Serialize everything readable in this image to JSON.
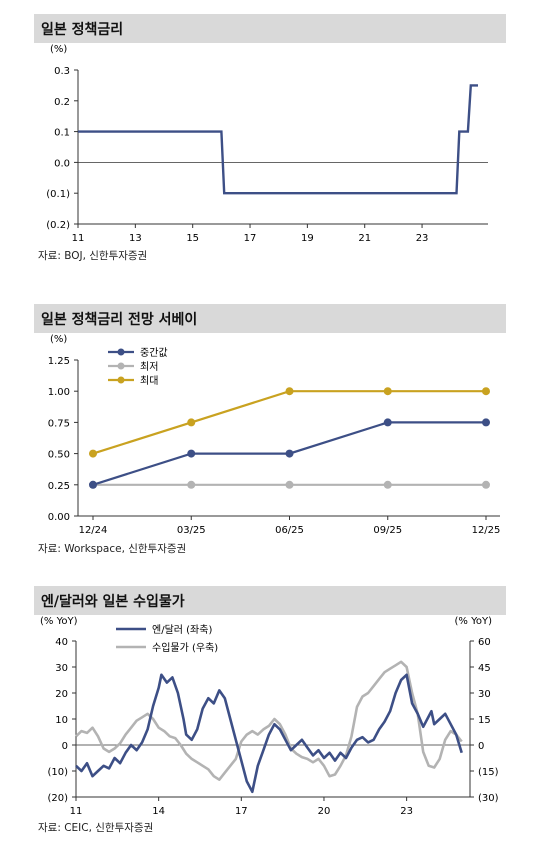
{
  "charts": [
    {
      "title": "일본 정책금리",
      "source": "자료: BOJ, 신한투자증권",
      "chart_data": {
        "type": "line",
        "unit_label": "(%)",
        "ylim": [
          -0.2,
          0.3
        ],
        "yticks": [
          0.3,
          0.2,
          0.1,
          0.0,
          -0.1,
          -0.2
        ],
        "ytick_labels": [
          "0.3",
          "0.2",
          "0.1",
          "0.0",
          "(0.1)",
          "(0.2)"
        ],
        "xlim": [
          2011,
          2025.3
        ],
        "xticks": [
          2011,
          2013,
          2015,
          2017,
          2019,
          2021,
          2023
        ],
        "xtick_labels": [
          "11",
          "13",
          "15",
          "17",
          "19",
          "21",
          "23"
        ],
        "grid": false,
        "series": [
          {
            "color": "#3d4f86",
            "points": [
              [
                2011.0,
                0.1
              ],
              [
                2016.0,
                0.1
              ],
              [
                2016.1,
                -0.1
              ],
              [
                2024.2,
                -0.1
              ],
              [
                2024.3,
                0.1
              ],
              [
                2024.6,
                0.1
              ],
              [
                2024.7,
                0.25
              ],
              [
                2024.95,
                0.25
              ]
            ]
          }
        ]
      }
    },
    {
      "title": "일본 정책금리 전망 서베이",
      "source": "자료: Workspace, 신한투자증권",
      "chart_data": {
        "type": "line",
        "unit_label": "(%)",
        "ylim": [
          0,
          1.25
        ],
        "yticks": [
          1.25,
          1.0,
          0.75,
          0.5,
          0.25,
          0.0
        ],
        "ytick_labels": [
          "1.25",
          "1.00",
          "0.75",
          "0.50",
          "0.25",
          "0.00"
        ],
        "categories": [
          "12/24",
          "03/25",
          "06/25",
          "09/25",
          "12/25"
        ],
        "legend": "top-left",
        "grid": false,
        "series": [
          {
            "name": "중간값",
            "color": "#3d4f86",
            "values": [
              0.25,
              0.5,
              0.5,
              0.75,
              0.75
            ]
          },
          {
            "name": "최저",
            "color": "#b3b3b3",
            "values": [
              0.25,
              0.25,
              0.25,
              0.25,
              0.25
            ]
          },
          {
            "name": "최대",
            "color": "#c9a220",
            "values": [
              0.5,
              0.75,
              1.0,
              1.0,
              1.0
            ]
          }
        ]
      }
    },
    {
      "title": "엔/달러와 일본 수입물가",
      "source": "자료: CEIC, 신한투자증권",
      "chart_data": {
        "type": "line",
        "left_unit_label": "(% YoY)",
        "right_unit_label": "(% YoY)",
        "ylim_left": [
          -20,
          40
        ],
        "ylim_right": [
          -30,
          60
        ],
        "yticks_left": [
          40,
          30,
          20,
          10,
          0,
          -10,
          -20
        ],
        "ytick_labels_left": [
          "40",
          "30",
          "20",
          "10",
          "0",
          "(10)",
          "(20)"
        ],
        "yticks_right": [
          60,
          45,
          30,
          15,
          0,
          -15,
          -30
        ],
        "ytick_labels_right": [
          "60",
          "45",
          "30",
          "15",
          "0",
          "(15)",
          "(30)"
        ],
        "xlim": [
          2011,
          2025.3
        ],
        "xticks": [
          2011,
          2014,
          2017,
          2020,
          2023
        ],
        "xtick_labels": [
          "11",
          "14",
          "17",
          "20",
          "23"
        ],
        "legend": "top-center",
        "grid": false,
        "series": [
          {
            "name": "엔/달러 (좌축)",
            "axis": "left",
            "color": "#3d4f86",
            "points": [
              [
                2011.0,
                -8
              ],
              [
                2011.2,
                -10
              ],
              [
                2011.4,
                -7
              ],
              [
                2011.6,
                -12
              ],
              [
                2011.8,
                -10
              ],
              [
                2012.0,
                -8
              ],
              [
                2012.2,
                -9
              ],
              [
                2012.4,
                -5
              ],
              [
                2012.6,
                -7
              ],
              [
                2012.8,
                -3
              ],
              [
                2013.0,
                0
              ],
              [
                2013.2,
                -2
              ],
              [
                2013.4,
                1
              ],
              [
                2013.6,
                6
              ],
              [
                2013.8,
                15
              ],
              [
                2014.0,
                22
              ],
              [
                2014.1,
                27
              ],
              [
                2014.3,
                24
              ],
              [
                2014.5,
                26
              ],
              [
                2014.7,
                20
              ],
              [
                2014.9,
                10
              ],
              [
                2015.0,
                4
              ],
              [
                2015.2,
                2
              ],
              [
                2015.4,
                6
              ],
              [
                2015.6,
                14
              ],
              [
                2015.8,
                18
              ],
              [
                2016.0,
                16
              ],
              [
                2016.2,
                21
              ],
              [
                2016.4,
                18
              ],
              [
                2016.6,
                10
              ],
              [
                2016.8,
                2
              ],
              [
                2017.0,
                -6
              ],
              [
                2017.2,
                -14
              ],
              [
                2017.4,
                -18
              ],
              [
                2017.6,
                -8
              ],
              [
                2017.8,
                -2
              ],
              [
                2018.0,
                4
              ],
              [
                2018.2,
                8
              ],
              [
                2018.4,
                6
              ],
              [
                2018.6,
                2
              ],
              [
                2018.8,
                -2
              ],
              [
                2019.0,
                0
              ],
              [
                2019.2,
                2
              ],
              [
                2019.4,
                -1
              ],
              [
                2019.6,
                -4
              ],
              [
                2019.8,
                -2
              ],
              [
                2020.0,
                -5
              ],
              [
                2020.2,
                -3
              ],
              [
                2020.4,
                -6
              ],
              [
                2020.6,
                -3
              ],
              [
                2020.8,
                -5
              ],
              [
                2021.0,
                -1
              ],
              [
                2021.2,
                2
              ],
              [
                2021.4,
                3
              ],
              [
                2021.6,
                1
              ],
              [
                2021.8,
                2
              ],
              [
                2022.0,
                6
              ],
              [
                2022.2,
                9
              ],
              [
                2022.4,
                13
              ],
              [
                2022.6,
                20
              ],
              [
                2022.8,
                25
              ],
              [
                2023.0,
                27
              ],
              [
                2023.2,
                16
              ],
              [
                2023.4,
                12
              ],
              [
                2023.6,
                7
              ],
              [
                2023.8,
                11
              ],
              [
                2023.9,
                13
              ],
              [
                2024.0,
                8
              ],
              [
                2024.2,
                10
              ],
              [
                2024.4,
                12
              ],
              [
                2024.6,
                8
              ],
              [
                2024.8,
                4
              ],
              [
                2025.0,
                -3
              ]
            ]
          },
          {
            "name": "수입물가 (우축)",
            "axis": "right",
            "color": "#b3b3b3",
            "points": [
              [
                2011.0,
                5
              ],
              [
                2011.2,
                8
              ],
              [
                2011.4,
                7
              ],
              [
                2011.6,
                10
              ],
              [
                2011.8,
                5
              ],
              [
                2012.0,
                -2
              ],
              [
                2012.2,
                -4
              ],
              [
                2012.4,
                -2
              ],
              [
                2012.6,
                1
              ],
              [
                2012.8,
                6
              ],
              [
                2013.0,
                10
              ],
              [
                2013.2,
                14
              ],
              [
                2013.4,
                16
              ],
              [
                2013.6,
                18
              ],
              [
                2013.8,
                15
              ],
              [
                2014.0,
                10
              ],
              [
                2014.2,
                8
              ],
              [
                2014.4,
                5
              ],
              [
                2014.6,
                4
              ],
              [
                2014.8,
                0
              ],
              [
                2015.0,
                -5
              ],
              [
                2015.2,
                -8
              ],
              [
                2015.4,
                -10
              ],
              [
                2015.6,
                -12
              ],
              [
                2015.8,
                -14
              ],
              [
                2016.0,
                -18
              ],
              [
                2016.2,
                -20
              ],
              [
                2016.4,
                -16
              ],
              [
                2016.6,
                -12
              ],
              [
                2016.8,
                -8
              ],
              [
                2017.0,
                2
              ],
              [
                2017.2,
                6
              ],
              [
                2017.4,
                8
              ],
              [
                2017.6,
                6
              ],
              [
                2017.8,
                9
              ],
              [
                2018.0,
                11
              ],
              [
                2018.2,
                15
              ],
              [
                2018.4,
                12
              ],
              [
                2018.6,
                6
              ],
              [
                2018.8,
                -2
              ],
              [
                2019.0,
                -5
              ],
              [
                2019.2,
                -7
              ],
              [
                2019.4,
                -8
              ],
              [
                2019.6,
                -10
              ],
              [
                2019.8,
                -8
              ],
              [
                2020.0,
                -12
              ],
              [
                2020.2,
                -18
              ],
              [
                2020.4,
                -17
              ],
              [
                2020.6,
                -12
              ],
              [
                2020.8,
                -6
              ],
              [
                2021.0,
                5
              ],
              [
                2021.2,
                22
              ],
              [
                2021.4,
                28
              ],
              [
                2021.6,
                30
              ],
              [
                2021.8,
                34
              ],
              [
                2022.0,
                38
              ],
              [
                2022.2,
                42
              ],
              [
                2022.4,
                44
              ],
              [
                2022.6,
                46
              ],
              [
                2022.8,
                48
              ],
              [
                2023.0,
                45
              ],
              [
                2023.2,
                30
              ],
              [
                2023.4,
                18
              ],
              [
                2023.6,
                -4
              ],
              [
                2023.8,
                -12
              ],
              [
                2024.0,
                -13
              ],
              [
                2024.2,
                -8
              ],
              [
                2024.4,
                3
              ],
              [
                2024.6,
                8
              ],
              [
                2024.8,
                6
              ],
              [
                2025.0,
                2
              ]
            ]
          }
        ]
      }
    }
  ]
}
